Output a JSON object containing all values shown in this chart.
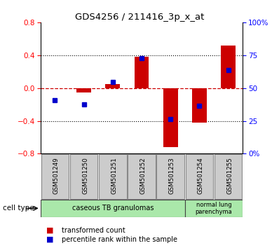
{
  "title": "GDS4256 / 211416_3p_x_at",
  "samples": [
    "GSM501249",
    "GSM501250",
    "GSM501251",
    "GSM501252",
    "GSM501253",
    "GSM501254",
    "GSM501255"
  ],
  "transformed_count": [
    0.0,
    -0.05,
    0.05,
    0.38,
    -0.72,
    -0.42,
    0.52
  ],
  "percentile_rank": [
    -0.15,
    -0.2,
    0.07,
    0.36,
    -0.38,
    -0.22,
    0.22
  ],
  "ylim": [
    -0.8,
    0.8
  ],
  "right_ylim": [
    0,
    100
  ],
  "right_yticks": [
    0,
    25,
    50,
    75,
    100
  ],
  "right_yticklabels": [
    "0%",
    "25",
    "50",
    "75",
    "100%"
  ],
  "yticks": [
    -0.8,
    -0.4,
    0.0,
    0.4,
    0.8
  ],
  "bar_color": "#cc0000",
  "dot_color": "#0000cc",
  "cell_type_label": "cell type",
  "legend_bar_label": "transformed count",
  "legend_dot_label": "percentile rank within the sample",
  "zero_line_color": "#cc0000",
  "bg_color": "#ffffff",
  "tick_bg_color": "#cccccc",
  "green_bg": "#aae8aa",
  "bar_width": 0.5
}
